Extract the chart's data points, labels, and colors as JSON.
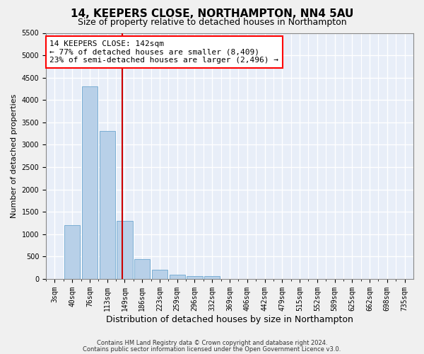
{
  "title1": "14, KEEPERS CLOSE, NORTHAMPTON, NN4 5AU",
  "title2": "Size of property relative to detached houses in Northampton",
  "xlabel": "Distribution of detached houses by size in Northampton",
  "ylabel": "Number of detached properties",
  "footer1": "Contains HM Land Registry data © Crown copyright and database right 2024.",
  "footer2": "Contains public sector information licensed under the Open Government Licence v3.0.",
  "categories": [
    "3sqm",
    "40sqm",
    "76sqm",
    "113sqm",
    "149sqm",
    "186sqm",
    "223sqm",
    "259sqm",
    "296sqm",
    "332sqm",
    "369sqm",
    "406sqm",
    "442sqm",
    "479sqm",
    "515sqm",
    "552sqm",
    "589sqm",
    "625sqm",
    "662sqm",
    "698sqm",
    "735sqm"
  ],
  "values": [
    0,
    1200,
    4300,
    3300,
    1300,
    450,
    200,
    100,
    60,
    60,
    0,
    0,
    0,
    0,
    0,
    0,
    0,
    0,
    0,
    0,
    0
  ],
  "bar_color": "#b8d0e8",
  "bar_edge_color": "#7aaed4",
  "property_size": "142sqm",
  "pct_smaller": "77%",
  "n_smaller": "8,409",
  "pct_larger_semi": "23%",
  "n_larger_semi": "2,496",
  "vline_color": "#cc0000",
  "vline_x": 3.88,
  "ylim": [
    0,
    5500
  ],
  "yticks": [
    0,
    500,
    1000,
    1500,
    2000,
    2500,
    3000,
    3500,
    4000,
    4500,
    5000,
    5500
  ],
  "background_color": "#e8eef8",
  "grid_color": "#ffffff",
  "title1_fontsize": 11,
  "title2_fontsize": 9,
  "xlabel_fontsize": 9,
  "ylabel_fontsize": 8,
  "tick_fontsize": 7,
  "footer_fontsize": 6
}
